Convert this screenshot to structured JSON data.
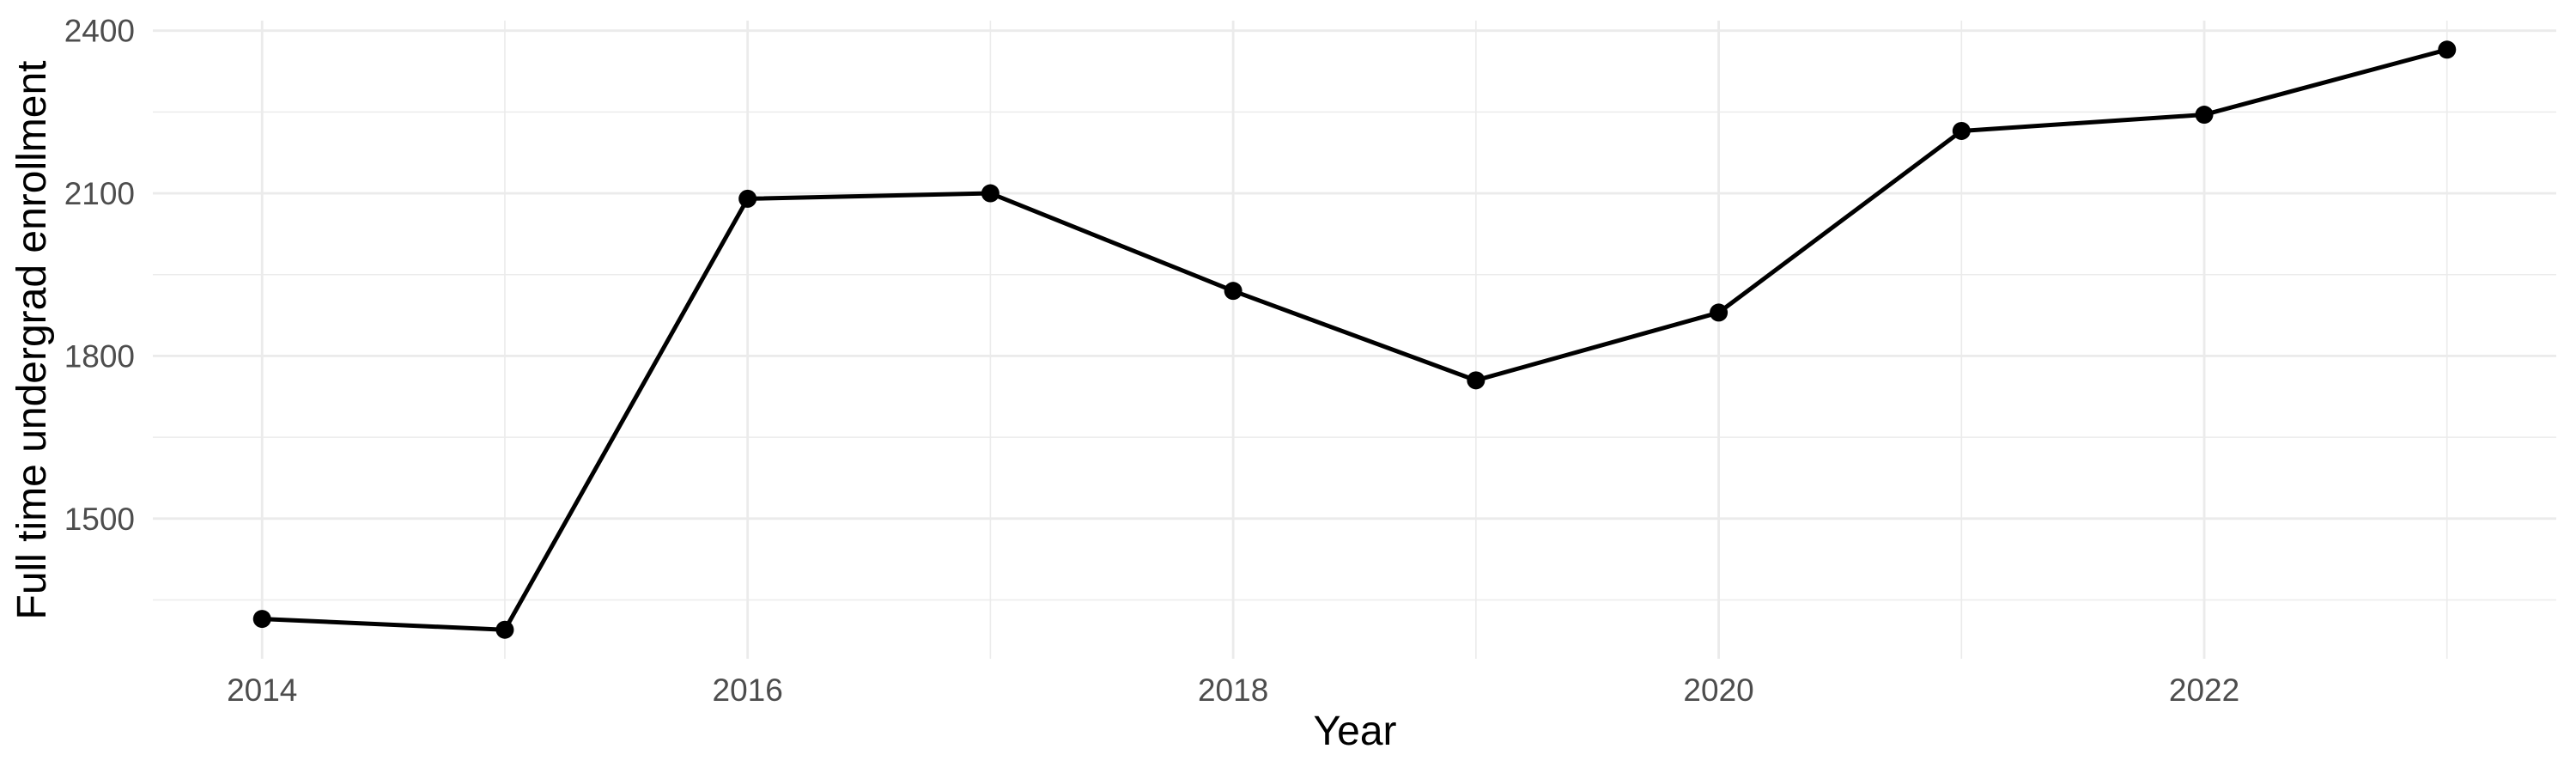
{
  "chart_data": {
    "type": "line",
    "title": "",
    "xlabel": "Year",
    "ylabel": "Full time undergrad enrollment",
    "series_name": "Full time undergrad enrollment",
    "x": [
      2014,
      2015,
      2016,
      2017,
      2018,
      2019,
      2020,
      2021,
      2022,
      2023
    ],
    "values": [
      1315,
      1295,
      2090,
      2100,
      1920,
      1755,
      1880,
      2215,
      2245,
      2365
    ],
    "xlim": [
      2013.55,
      2023.45
    ],
    "ylim": [
      1241.5,
      2418.5
    ],
    "x_ticks_major": {
      "values": [
        2014,
        2016,
        2018,
        2020,
        2022
      ],
      "labels": [
        "2014",
        "2016",
        "2018",
        "2020",
        "2022"
      ]
    },
    "x_ticks_minor": [
      2015,
      2017,
      2019,
      2021,
      2023
    ],
    "y_ticks_major": {
      "values": [
        1500,
        1800,
        2100,
        2400
      ],
      "labels": [
        "1500",
        "1800",
        "2100",
        "2400"
      ]
    },
    "y_ticks_minor": [
      1350,
      1650,
      1950,
      2250
    ],
    "grid": true,
    "legend": "none",
    "style": {
      "background": "#FFFFFF",
      "line_color": "#000000",
      "point_color": "#000000",
      "grid_color": "#EBEBEB",
      "tick_label_color": "#4D4D4D",
      "axis_title_color": "#000000"
    }
  }
}
